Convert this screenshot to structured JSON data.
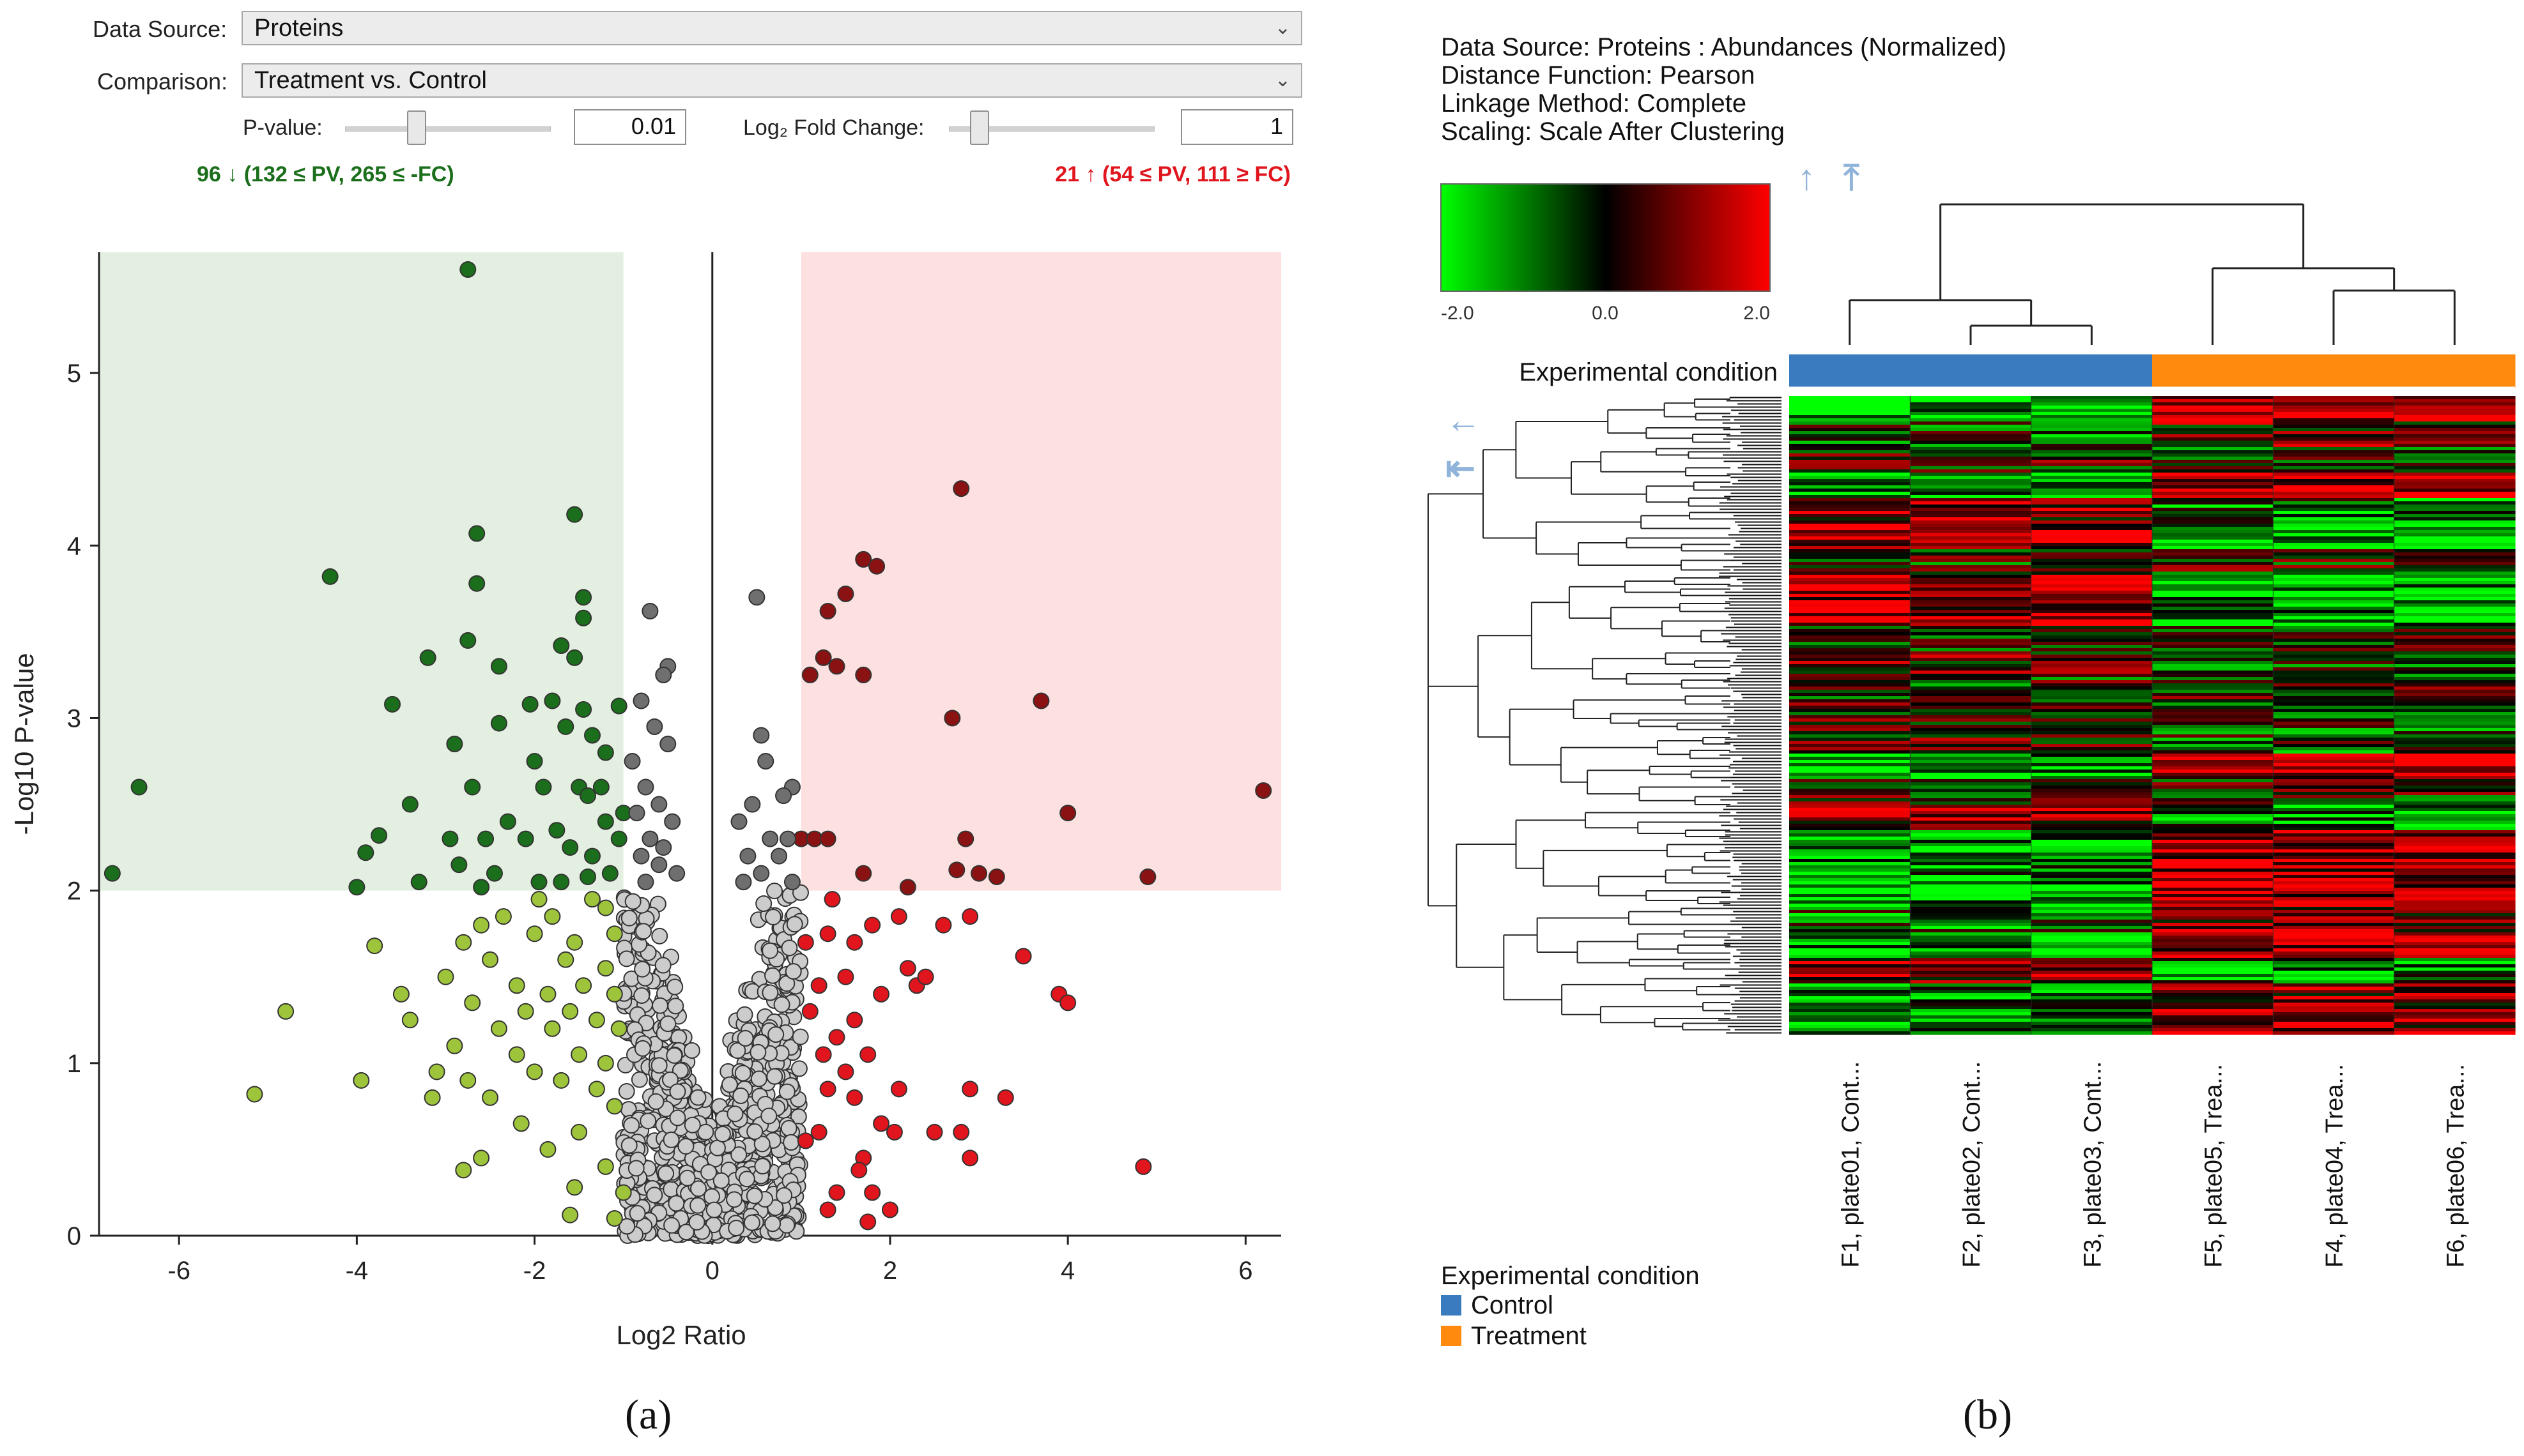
{
  "controls": {
    "data_source_label": "Data Source:",
    "data_source_value": "Proteins",
    "comparison_label": "Comparison:",
    "comparison_value": "Treatment vs. Control",
    "pvalue_label": "P-value:",
    "pvalue_value": "0.01",
    "fc_label": "Log₂ Fold Change:",
    "fc_value": "1",
    "down_summary": "96 ↓ (132 ≤ PV, 265 ≤ -FC)",
    "up_summary": "21 ↑ (54 ≤ PV, 111 ≥ FC)",
    "down_color": "#1b6e1b",
    "up_color": "#e0151d",
    "pvalue_slider_fraction": 0.35,
    "fc_slider_fraction": 0.15
  },
  "chart_data": [
    {
      "type": "scatter",
      "chart_kind": "volcano",
      "title": "",
      "xlabel": "Log2 Ratio",
      "ylabel": "-Log10 P-value",
      "xlim": [
        -6.9,
        6.4
      ],
      "ylim": [
        0,
        5.7
      ],
      "xticks": [
        -6,
        -4,
        -2,
        0,
        2,
        4,
        6
      ],
      "yticks": [
        0,
        1,
        2,
        3,
        4,
        5
      ],
      "thresholds": {
        "log2fc": 1,
        "neg_log10_p": 2
      },
      "regions": [
        {
          "name": "down",
          "x": [
            -6.9,
            -1
          ],
          "y": [
            2,
            5.7
          ],
          "color": "#e3f0e1"
        },
        {
          "name": "up",
          "x": [
            1,
            6.4
          ],
          "y": [
            2,
            5.7
          ],
          "color": "#fde0e0"
        }
      ],
      "series": [
        {
          "class": "significant-down",
          "color": "#1b6e1b",
          "points": [
            [
              -2.75,
              5.6
            ],
            [
              -1.55,
              4.18
            ],
            [
              -2.65,
              4.07
            ],
            [
              -4.3,
              3.82
            ],
            [
              -1.45,
              3.7
            ],
            [
              -2.65,
              3.78
            ],
            [
              -1.45,
              3.58
            ],
            [
              -2.75,
              3.45
            ],
            [
              -1.7,
              3.42
            ],
            [
              -1.55,
              3.35
            ],
            [
              -3.2,
              3.35
            ],
            [
              -2.4,
              3.3
            ],
            [
              -3.6,
              3.08
            ],
            [
              -2.05,
              3.08
            ],
            [
              -1.8,
              3.1
            ],
            [
              -1.45,
              3.05
            ],
            [
              -1.05,
              3.07
            ],
            [
              -2.4,
              2.97
            ],
            [
              -1.65,
              2.95
            ],
            [
              -1.35,
              2.9
            ],
            [
              -1.2,
              2.8
            ],
            [
              -2.9,
              2.85
            ],
            [
              -2.0,
              2.75
            ],
            [
              -1.9,
              2.6
            ],
            [
              -1.5,
              2.6
            ],
            [
              -1.25,
              2.6
            ],
            [
              -1.4,
              2.55
            ],
            [
              -2.7,
              2.6
            ],
            [
              -3.4,
              2.5
            ],
            [
              -2.3,
              2.4
            ],
            [
              -1.75,
              2.35
            ],
            [
              -1.2,
              2.4
            ],
            [
              -1.0,
              2.45
            ],
            [
              -3.75,
              2.32
            ],
            [
              -2.95,
              2.3
            ],
            [
              -2.55,
              2.3
            ],
            [
              -2.1,
              2.3
            ],
            [
              -1.6,
              2.25
            ],
            [
              -1.35,
              2.2
            ],
            [
              -1.05,
              2.3
            ],
            [
              -3.9,
              2.22
            ],
            [
              -2.85,
              2.15
            ],
            [
              -2.45,
              2.1
            ],
            [
              -1.95,
              2.05
            ],
            [
              -1.7,
              2.05
            ],
            [
              -1.4,
              2.08
            ],
            [
              -1.15,
              2.1
            ],
            [
              -4.0,
              2.02
            ],
            [
              -3.3,
              2.05
            ],
            [
              -2.6,
              2.02
            ],
            [
              -6.45,
              2.6
            ],
            [
              -6.75,
              2.1
            ]
          ]
        },
        {
          "class": "significant-up",
          "color": "#8b1212",
          "points": [
            [
              2.8,
              4.33
            ],
            [
              1.7,
              3.92
            ],
            [
              1.85,
              3.88
            ],
            [
              1.5,
              3.72
            ],
            [
              1.3,
              3.62
            ],
            [
              1.25,
              3.35
            ],
            [
              1.4,
              3.3
            ],
            [
              1.7,
              3.25
            ],
            [
              1.1,
              3.25
            ],
            [
              3.7,
              3.1
            ],
            [
              2.7,
              3.0
            ],
            [
              6.2,
              2.58
            ],
            [
              2.85,
              2.3
            ],
            [
              4.0,
              2.45
            ],
            [
              1.0,
              2.3
            ],
            [
              1.15,
              2.3
            ],
            [
              1.3,
              2.3
            ],
            [
              2.75,
              2.12
            ],
            [
              3.0,
              2.1
            ],
            [
              3.2,
              2.08
            ],
            [
              1.7,
              2.1
            ],
            [
              2.2,
              2.02
            ],
            [
              4.9,
              2.08
            ]
          ]
        },
        {
          "class": "fc-only",
          "color": "#e0151d",
          "points": [
            [
              1.35,
              1.95
            ],
            [
              1.8,
              1.8
            ],
            [
              2.1,
              1.85
            ],
            [
              2.9,
              1.85
            ],
            [
              2.6,
              1.8
            ],
            [
              1.3,
              1.75
            ],
            [
              1.6,
              1.7
            ],
            [
              2.2,
              1.55
            ],
            [
              1.5,
              1.5
            ],
            [
              1.05,
              1.7
            ],
            [
              1.2,
              1.45
            ],
            [
              2.3,
              1.45
            ],
            [
              2.4,
              1.5
            ],
            [
              3.5,
              1.62
            ],
            [
              1.9,
              1.4
            ],
            [
              1.1,
              1.3
            ],
            [
              1.6,
              1.25
            ],
            [
              1.4,
              1.15
            ],
            [
              1.75,
              1.05
            ],
            [
              1.25,
              1.05
            ],
            [
              3.9,
              1.4
            ],
            [
              4.0,
              1.35
            ],
            [
              1.5,
              0.95
            ],
            [
              2.1,
              0.85
            ],
            [
              1.3,
              0.85
            ],
            [
              1.6,
              0.8
            ],
            [
              2.9,
              0.85
            ],
            [
              3.3,
              0.8
            ],
            [
              1.2,
              0.6
            ],
            [
              1.9,
              0.65
            ],
            [
              2.05,
              0.6
            ],
            [
              2.5,
              0.6
            ],
            [
              1.05,
              0.55
            ],
            [
              1.7,
              0.45
            ],
            [
              2.9,
              0.45
            ],
            [
              2.8,
              0.6
            ],
            [
              1.65,
              0.38
            ],
            [
              4.85,
              0.4
            ],
            [
              1.4,
              0.25
            ],
            [
              1.8,
              0.25
            ],
            [
              2.0,
              0.15
            ],
            [
              1.3,
              0.15
            ],
            [
              1.75,
              0.08
            ]
          ]
        },
        {
          "class": "pv-only",
          "color": "#9ec43c",
          "points": [
            [
              -2.6,
              1.8
            ],
            [
              -1.35,
              1.95
            ],
            [
              -1.95,
              1.95
            ],
            [
              -2.35,
              1.85
            ],
            [
              -1.8,
              1.85
            ],
            [
              -1.2,
              1.9
            ],
            [
              -1.55,
              1.7
            ],
            [
              -2.8,
              1.7
            ],
            [
              -2.0,
              1.75
            ],
            [
              -1.1,
              1.75
            ],
            [
              -3.8,
              1.68
            ],
            [
              -2.5,
              1.6
            ],
            [
              -1.65,
              1.6
            ],
            [
              -1.2,
              1.55
            ],
            [
              -3.0,
              1.5
            ],
            [
              -2.2,
              1.45
            ],
            [
              -1.45,
              1.45
            ],
            [
              -1.85,
              1.4
            ],
            [
              -1.1,
              1.4
            ],
            [
              -2.7,
              1.35
            ],
            [
              -3.5,
              1.4
            ],
            [
              -2.1,
              1.3
            ],
            [
              -1.6,
              1.3
            ],
            [
              -1.3,
              1.25
            ],
            [
              -4.8,
              1.3
            ],
            [
              -3.4,
              1.25
            ],
            [
              -2.4,
              1.2
            ],
            [
              -1.8,
              1.2
            ],
            [
              -1.05,
              1.2
            ],
            [
              -2.9,
              1.1
            ],
            [
              -2.2,
              1.05
            ],
            [
              -1.5,
              1.05
            ],
            [
              -1.2,
              1.0
            ],
            [
              -3.1,
              0.95
            ],
            [
              -2.0,
              0.95
            ],
            [
              -1.7,
              0.9
            ],
            [
              -3.95,
              0.9
            ],
            [
              -2.75,
              0.9
            ],
            [
              -1.3,
              0.85
            ],
            [
              -2.5,
              0.8
            ],
            [
              -1.1,
              0.75
            ],
            [
              -3.15,
              0.8
            ],
            [
              -5.15,
              0.82
            ],
            [
              -2.15,
              0.65
            ],
            [
              -1.5,
              0.6
            ],
            [
              -1.85,
              0.5
            ],
            [
              -2.6,
              0.45
            ],
            [
              -1.2,
              0.4
            ],
            [
              -2.8,
              0.38
            ],
            [
              -1.55,
              0.28
            ],
            [
              -1.0,
              0.25
            ],
            [
              -1.6,
              0.12
            ],
            [
              -1.1,
              0.1
            ]
          ]
        },
        {
          "class": "not-significant",
          "color": "#cccccc",
          "jitter_cloud": {
            "x_range": [
              -1.0,
              1.0
            ],
            "y_range": [
              0,
              2.0
            ],
            "count": 900,
            "note": ""
          }
        },
        {
          "class": "pv-significant-fc-insignificant",
          "color": "#6f6f6f",
          "points": [
            [
              -0.7,
              3.62
            ],
            [
              0.5,
              3.7
            ],
            [
              -0.5,
              3.3
            ],
            [
              -0.55,
              3.25
            ],
            [
              -0.8,
              3.1
            ],
            [
              -0.65,
              2.95
            ],
            [
              -0.5,
              2.85
            ],
            [
              -0.9,
              2.75
            ],
            [
              -0.75,
              2.6
            ],
            [
              -0.6,
              2.5
            ],
            [
              -0.85,
              2.45
            ],
            [
              -0.45,
              2.4
            ],
            [
              -0.7,
              2.3
            ],
            [
              -0.55,
              2.25
            ],
            [
              -0.8,
              2.2
            ],
            [
              -0.6,
              2.15
            ],
            [
              -0.4,
              2.1
            ],
            [
              -0.75,
              2.05
            ],
            [
              0.55,
              2.9
            ],
            [
              0.6,
              2.75
            ],
            [
              0.9,
              2.6
            ],
            [
              0.8,
              2.55
            ],
            [
              0.45,
              2.5
            ],
            [
              0.3,
              2.4
            ],
            [
              0.65,
              2.3
            ],
            [
              0.4,
              2.2
            ],
            [
              0.75,
              2.2
            ],
            [
              0.55,
              2.1
            ],
            [
              0.9,
              2.05
            ],
            [
              0.35,
              2.05
            ],
            [
              0.85,
              2.3
            ]
          ]
        }
      ]
    },
    {
      "type": "heatmap",
      "meta": {
        "data_source": "Data Source: Proteins : Abundances (Normalized)",
        "distance": "Distance Function: Pearson",
        "linkage": "Linkage Method: Complete",
        "scaling": "Scaling: Scale After Clustering"
      },
      "color_scale": {
        "min_label": "-2.0",
        "mid_label": "0.0",
        "max_label": "2.0",
        "low_color": "#00ff00",
        "mid_color": "#000000",
        "high_color": "#ff0000"
      },
      "annotation_label": "Experimental condition",
      "columns": [
        "F1, plate01, Cont...",
        "F2, plate02, Cont...",
        "F3, plate03, Cont...",
        "F5, plate05, Trea...",
        "F4, plate04, Trea...",
        "F6, plate06, Trea..."
      ],
      "column_groups": [
        "Control",
        "Control",
        "Control",
        "Treatment",
        "Treatment",
        "Treatment"
      ],
      "legend_title": "Experimental condition",
      "legend": [
        {
          "name": "Control",
          "color": "#3a7bbf"
        },
        {
          "name": "Treatment",
          "color": "#ff8a0d"
        }
      ]
    }
  ],
  "sub_labels": {
    "a": "(a)",
    "b": "(b)"
  }
}
